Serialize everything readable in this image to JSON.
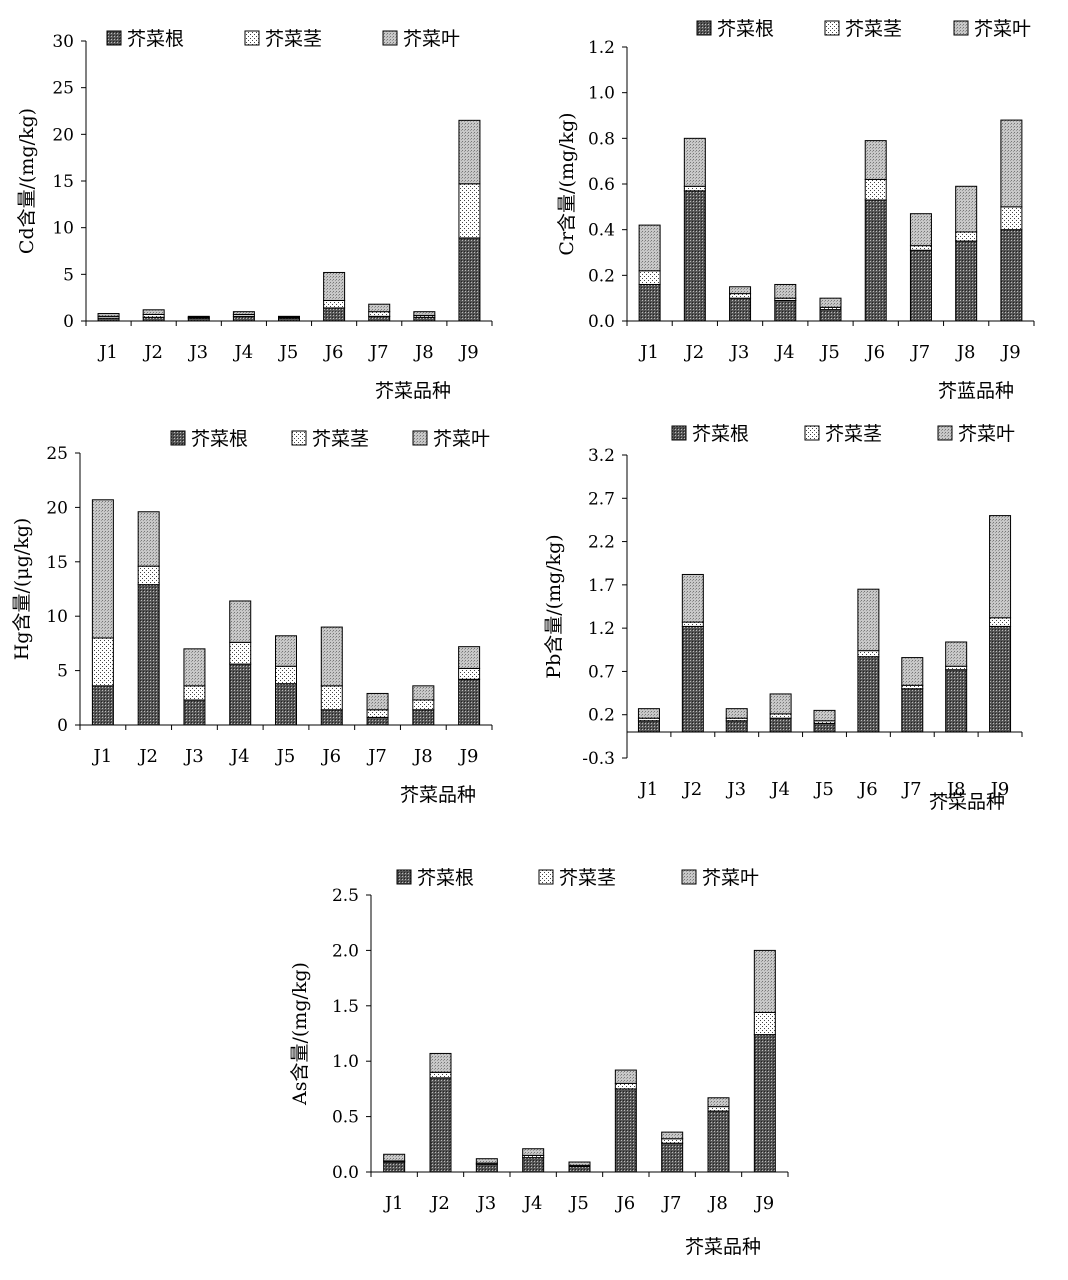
{
  "legend": [
    "芥菜根",
    "芥菜茎",
    "芥菜叶"
  ],
  "categories": [
    "J1",
    "J2",
    "J3",
    "J4",
    "J5",
    "J6",
    "J7",
    "J8",
    "J9"
  ],
  "chart_data": [
    {
      "type": "bar",
      "stacked": true,
      "ylabel": "Cd含量/(mg/kg)",
      "xlabel": "芥菜品种",
      "ylim": [
        0,
        30
      ],
      "yticks": [
        "0",
        "5",
        "10",
        "15",
        "20",
        "25",
        "30"
      ],
      "categories": [
        "J1",
        "J2",
        "J3",
        "J4",
        "J5",
        "J6",
        "J7",
        "J8",
        "J9"
      ],
      "legend_position": "top",
      "series": [
        {
          "name": "芥菜根",
          "values": [
            0.3,
            0.4,
            0.3,
            0.5,
            0.3,
            1.4,
            0.5,
            0.4,
            8.9
          ]
        },
        {
          "name": "芥菜茎",
          "values": [
            0.2,
            0.3,
            0.1,
            0.2,
            0.1,
            0.8,
            0.5,
            0.2,
            5.8
          ]
        },
        {
          "name": "芥菜叶",
          "values": [
            0.3,
            0.5,
            0.1,
            0.3,
            0.1,
            3.0,
            0.8,
            0.4,
            6.8
          ]
        }
      ]
    },
    {
      "type": "bar",
      "stacked": true,
      "ylabel": "Cr含量/(mg/kg)",
      "xlabel": "芥蓝品种",
      "ylim": [
        0,
        1.2
      ],
      "yticks": [
        "0.0",
        "0.2",
        "0.4",
        "0.6",
        "0.8",
        "1.0",
        "1.2"
      ],
      "categories": [
        "J1",
        "J2",
        "J3",
        "J4",
        "J5",
        "J6",
        "J7",
        "J8",
        "J9"
      ],
      "legend_position": "top",
      "series": [
        {
          "name": "芥菜根",
          "values": [
            0.16,
            0.57,
            0.1,
            0.09,
            0.05,
            0.53,
            0.31,
            0.35,
            0.4
          ]
        },
        {
          "name": "芥菜茎",
          "values": [
            0.06,
            0.02,
            0.02,
            0.01,
            0.01,
            0.09,
            0.02,
            0.04,
            0.1
          ]
        },
        {
          "name": "芥菜叶",
          "values": [
            0.2,
            0.21,
            0.03,
            0.06,
            0.04,
            0.17,
            0.14,
            0.2,
            0.38
          ]
        }
      ]
    },
    {
      "type": "bar",
      "stacked": true,
      "ylabel": "Hg含量/(μg/kg)",
      "xlabel": "芥菜品种",
      "ylim": [
        0,
        25
      ],
      "yticks": [
        "0",
        "5",
        "10",
        "15",
        "20",
        "25"
      ],
      "categories": [
        "J1",
        "J2",
        "J3",
        "J4",
        "J5",
        "J6",
        "J7",
        "J8",
        "J9"
      ],
      "legend_position": "top",
      "series": [
        {
          "name": "芥菜根",
          "values": [
            3.6,
            12.9,
            2.3,
            5.6,
            3.8,
            1.4,
            0.7,
            1.4,
            4.2
          ]
        },
        {
          "name": "芥菜茎",
          "values": [
            4.4,
            1.7,
            1.3,
            2.0,
            1.6,
            2.2,
            0.7,
            0.9,
            1.0
          ]
        },
        {
          "name": "芥菜叶",
          "values": [
            12.7,
            5.0,
            3.4,
            3.8,
            2.8,
            5.4,
            1.5,
            1.3,
            2.0
          ]
        }
      ]
    },
    {
      "type": "bar",
      "stacked": true,
      "ylabel": "Pb含量/(mg/kg)",
      "xlabel": "芥菜品种",
      "ylim": [
        -0.3,
        3.2
      ],
      "yticks": [
        "-0.3",
        "0.2",
        "0.7",
        "1.2",
        "1.7",
        "2.2",
        "2.7",
        "3.2"
      ],
      "categories": [
        "J1",
        "J2",
        "J3",
        "J4",
        "J5",
        "J6",
        "J7",
        "J8",
        "J9"
      ],
      "legend_position": "top",
      "series": [
        {
          "name": "芥菜根",
          "values": [
            0.13,
            1.22,
            0.13,
            0.16,
            0.1,
            0.87,
            0.5,
            0.72,
            1.22
          ]
        },
        {
          "name": "芥菜茎",
          "values": [
            0.03,
            0.05,
            0.03,
            0.05,
            0.03,
            0.07,
            0.04,
            0.04,
            0.1
          ]
        },
        {
          "name": "芥菜叶",
          "values": [
            0.11,
            0.55,
            0.11,
            0.23,
            0.12,
            0.71,
            0.32,
            0.28,
            1.18
          ]
        }
      ]
    },
    {
      "type": "bar",
      "stacked": true,
      "ylabel": "As含量/(mg/kg)",
      "xlabel": "芥菜品种",
      "ylim": [
        0,
        2.5
      ],
      "yticks": [
        "0.0",
        "0.5",
        "1.0",
        "1.5",
        "2.0",
        "2.5"
      ],
      "categories": [
        "J1",
        "J2",
        "J3",
        "J4",
        "J5",
        "J6",
        "J7",
        "J8",
        "J9"
      ],
      "legend_position": "top",
      "series": [
        {
          "name": "芥菜根",
          "values": [
            0.09,
            0.85,
            0.07,
            0.13,
            0.05,
            0.75,
            0.26,
            0.55,
            1.24
          ]
        },
        {
          "name": "芥菜茎",
          "values": [
            0.01,
            0.05,
            0.01,
            0.02,
            0.01,
            0.05,
            0.04,
            0.04,
            0.2
          ]
        },
        {
          "name": "芥菜叶",
          "values": [
            0.06,
            0.17,
            0.04,
            0.06,
            0.03,
            0.12,
            0.06,
            0.08,
            0.56
          ]
        }
      ]
    }
  ]
}
